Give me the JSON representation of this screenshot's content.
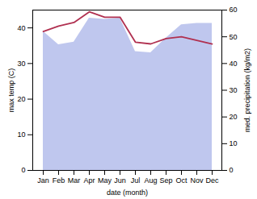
{
  "chart_data": {
    "type": "line",
    "categories": [
      "Jan",
      "Feb",
      "Mar",
      "Apr",
      "May",
      "Jun",
      "Jul",
      "Aug",
      "Sep",
      "Oct",
      "Nov",
      "Dec"
    ],
    "xlabel": "date (month)",
    "ylabel": "max temp (C)",
    "y2label": "med. precipitation (kg/m2)",
    "series": [
      {
        "type": "area",
        "axis": "y2",
        "color": "#aab4e8",
        "values": [
          52.0,
          47.0,
          48.0,
          57.0,
          56.5,
          57.0,
          44.5,
          44.0,
          49.5,
          54.5,
          55.0,
          55.0
        ]
      },
      {
        "type": "line",
        "color": "#b03050",
        "values": [
          39.0,
          40.5,
          41.5,
          44.5,
          43.0,
          43.0,
          36.0,
          35.5,
          37.0,
          37.5,
          36.5,
          35.5
        ]
      }
    ],
    "ylim": [
      0,
      45
    ],
    "yticks": [
      0,
      10,
      20,
      30,
      40
    ],
    "y2lim": [
      0,
      60
    ],
    "y2ticks": [
      0,
      10,
      20,
      30,
      40,
      50,
      60
    ]
  }
}
